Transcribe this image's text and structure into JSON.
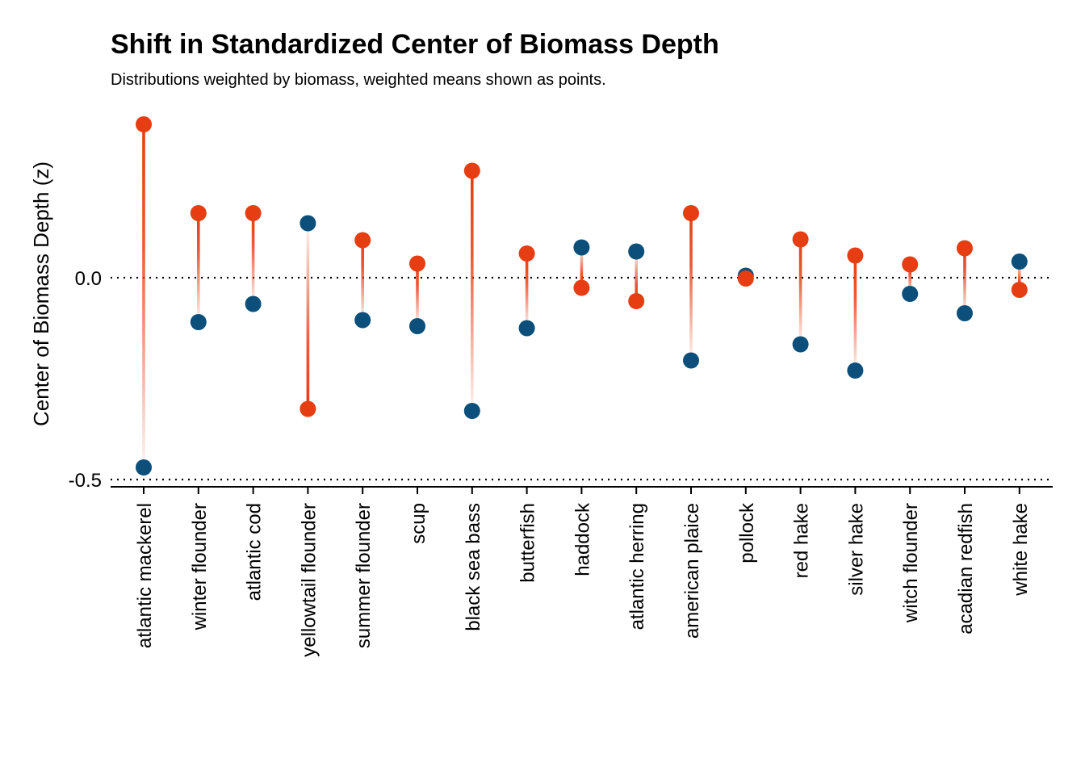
{
  "colors": {
    "before": "#0b4f7a",
    "after": "#e63d12",
    "reference_line": "#000000"
  },
  "chart_data": {
    "type": "dumbbell",
    "title": "Shift in Standardized Center of Biomass Depth",
    "subtitle": "Distributions weighted by biomass, weighted means shown as points.",
    "xlabel": "",
    "ylabel": "Center of Biomass Depth (z)",
    "ylim": [
      -0.5,
      0.4
    ],
    "yticks": [
      -0.5,
      0.0
    ],
    "ytick_labels": [
      "-0.5",
      "0.0"
    ],
    "reference_lines": [
      0.0,
      -0.5
    ],
    "grid": false,
    "legend": "none",
    "categories": [
      "atlantic mackerel",
      "winter flounder",
      "atlantic cod",
      "yellowtail flounder",
      "summer flounder",
      "scup",
      "black sea bass",
      "butterfish",
      "haddock",
      "atlantic herring",
      "american plaice",
      "pollock",
      "red hake",
      "silver hake",
      "witch flounder",
      "acadian redfish",
      "white hake"
    ],
    "series": [
      {
        "color_key": "before",
        "values": [
          -0.47,
          -0.11,
          -0.065,
          0.135,
          -0.105,
          -0.12,
          -0.33,
          -0.125,
          0.075,
          0.065,
          -0.205,
          0.005,
          -0.165,
          -0.23,
          -0.04,
          -0.088,
          0.04
        ]
      },
      {
        "color_key": "after",
        "values": [
          0.38,
          0.16,
          0.16,
          -0.325,
          0.093,
          0.035,
          0.265,
          0.06,
          -0.025,
          -0.058,
          0.16,
          -0.002,
          0.095,
          0.055,
          0.033,
          0.073,
          -0.03
        ]
      }
    ]
  }
}
